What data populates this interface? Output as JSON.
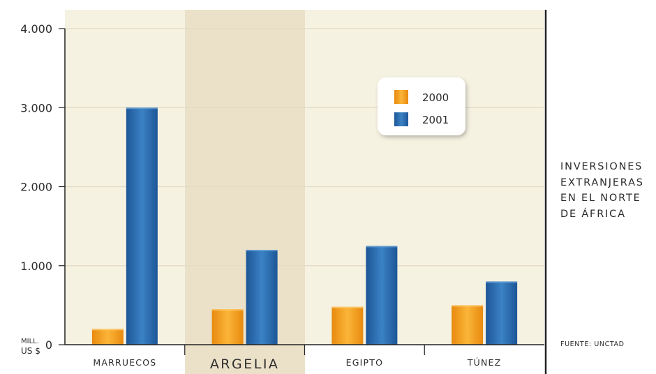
{
  "chart_data": {
    "type": "bar",
    "categories": [
      "MARRUECOS",
      "ARGELIA",
      "EGIPTO",
      "TÚNEZ"
    ],
    "highlighted_category": "ARGELIA",
    "series": [
      {
        "name": "2000",
        "color": "#f5a11c",
        "values": [
          200,
          450,
          480,
          500
        ]
      },
      {
        "name": "2001",
        "color": "#2a6bb0",
        "values": [
          3000,
          1200,
          1250,
          800
        ]
      }
    ],
    "ylim": [
      0,
      4000
    ],
    "yticks": [
      0,
      1000,
      2000,
      3000,
      4000
    ],
    "ytick_labels": [
      "0",
      "1.000",
      "2.000",
      "3.000",
      "4.000"
    ],
    "yunit_label": [
      "MILL.",
      "US $"
    ],
    "grid": true,
    "legend_position": "top-right",
    "title": "INVERSIONES\nEXTRANJERAS\nEN EL NORTE\nDE ÁFRICA",
    "source": "FUENTE: UNCTAD"
  },
  "colors": {
    "plot_background": "#f6f2e2",
    "highlight_band": "#ebe1c9",
    "grid": "#e4dcc7",
    "axis": "#222222",
    "text": "#2b2b2b"
  }
}
